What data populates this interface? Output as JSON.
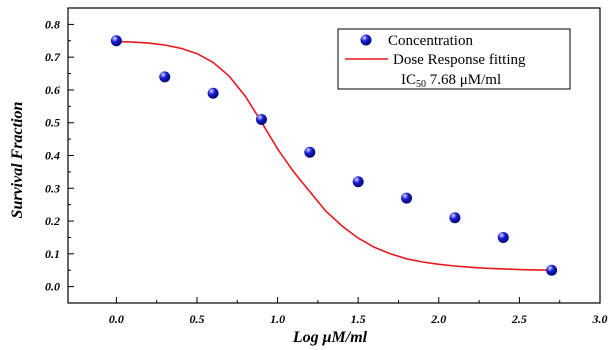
{
  "chart_data": {
    "type": "scatter",
    "title": "",
    "xlabel": "Log  μM/ml",
    "ylabel": "Survival Fraction",
    "xlim": [
      -0.3,
      3.0
    ],
    "ylim": [
      -0.05,
      0.85
    ],
    "x_ticks": [
      0.0,
      0.5,
      1.0,
      1.5,
      2.0,
      2.5,
      3.0
    ],
    "x_tick_labels": [
      "0.0",
      "0.5",
      "1.0",
      "1.5",
      "2.0",
      "2.5",
      "3.0"
    ],
    "y_ticks": [
      0.0,
      0.1,
      0.2,
      0.3,
      0.4,
      0.5,
      0.6,
      0.7,
      0.8
    ],
    "y_tick_labels": [
      "0.0",
      "0.1",
      "0.2",
      "0.3",
      "0.4",
      "0.5",
      "0.6",
      "0.7",
      "0.8"
    ],
    "grid": false,
    "legend_position": "top-right",
    "series": [
      {
        "name": "Concentration",
        "kind": "scatter",
        "color": "#1a1ad6",
        "x": [
          0.0,
          0.3,
          0.6,
          0.9,
          1.2,
          1.5,
          1.8,
          2.1,
          2.4,
          2.7
        ],
        "y": [
          0.75,
          0.64,
          0.59,
          0.51,
          0.41,
          0.32,
          0.27,
          0.21,
          0.15,
          0.05
        ]
      },
      {
        "name": "Dose Response fitting",
        "kind": "line",
        "color": "#e8191e",
        "x": [
          0.0,
          0.1,
          0.2,
          0.3,
          0.4,
          0.5,
          0.6,
          0.7,
          0.8,
          0.9,
          1.0,
          1.1,
          1.2,
          1.3,
          1.4,
          1.5,
          1.6,
          1.7,
          1.8,
          1.9,
          2.0,
          2.1,
          2.2,
          2.3,
          2.4,
          2.5,
          2.6,
          2.7
        ],
        "y": [
          0.748,
          0.746,
          0.743,
          0.737,
          0.727,
          0.711,
          0.684,
          0.642,
          0.581,
          0.502,
          0.42,
          0.35,
          0.29,
          0.23,
          0.185,
          0.148,
          0.12,
          0.1,
          0.085,
          0.075,
          0.068,
          0.063,
          0.059,
          0.056,
          0.054,
          0.052,
          0.051,
          0.05
        ]
      }
    ],
    "annotations": {
      "ic50_prefix": "IC",
      "ic50_sub": "50",
      "ic50_value": " 7.68 μM/ml"
    }
  }
}
